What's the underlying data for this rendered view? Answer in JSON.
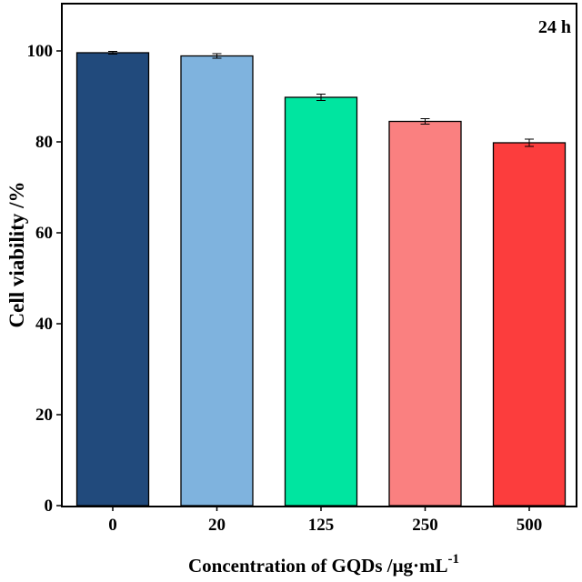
{
  "chart_data": {
    "type": "bar",
    "annotation": "24 h",
    "categories": [
      "0",
      "20",
      "125",
      "250",
      "500"
    ],
    "values": [
      99.6,
      98.9,
      89.8,
      84.5,
      79.8
    ],
    "errors": [
      0.3,
      0.5,
      0.7,
      0.6,
      0.8
    ],
    "colors": [
      "#214a7c",
      "#7fb3de",
      "#00e5a0",
      "#fa8080",
      "#fc3d3d"
    ],
    "xlabel": "Concentration of GQDs /μg·mL",
    "xlabel_superscript": "-1",
    "ylabel": "Cell viability /%",
    "ylim": [
      0,
      110
    ],
    "yticks": [
      "0",
      "20",
      "40",
      "60",
      "80",
      "100"
    ],
    "ytick_values": [
      0,
      20,
      40,
      60,
      80,
      100
    ],
    "grid": false,
    "legend": "none"
  }
}
